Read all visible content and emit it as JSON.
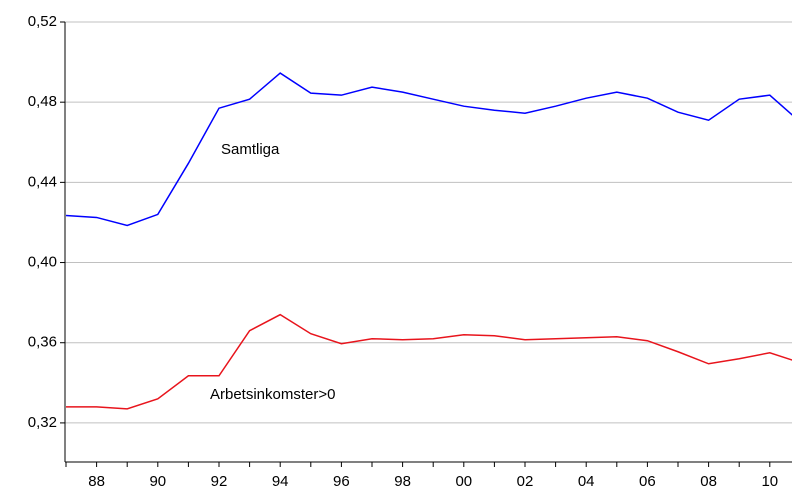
{
  "chart_data": {
    "type": "line",
    "categories": [
      null,
      "88",
      null,
      "90",
      null,
      "92",
      null,
      "94",
      null,
      "96",
      null,
      "98",
      null,
      "00",
      null,
      "02",
      null,
      "04",
      null,
      "06",
      null,
      "08",
      null,
      "10",
      null
    ],
    "series": [
      {
        "name": "Samtliga",
        "color": "#0000ff",
        "values": [
          0.4235,
          0.4225,
          0.4185,
          0.424,
          0.4495,
          0.477,
          0.4815,
          0.4945,
          0.4845,
          0.4835,
          0.4875,
          0.485,
          0.4815,
          0.478,
          0.476,
          0.4745,
          0.478,
          0.482,
          0.485,
          0.482,
          0.475,
          0.471,
          0.4815,
          0.4835,
          0.47
        ]
      },
      {
        "name": "Arbetsinkomster>0",
        "color": "#e8141c",
        "values": [
          0.328,
          0.328,
          0.327,
          0.332,
          0.3435,
          0.3435,
          0.366,
          0.374,
          0.3645,
          0.3595,
          0.362,
          0.3615,
          0.362,
          0.364,
          0.3635,
          0.3615,
          0.362,
          0.3625,
          0.363,
          0.361,
          0.3555,
          0.3495,
          0.352,
          0.355,
          0.35
        ]
      }
    ],
    "ylim": [
      0.3005,
      0.52
    ],
    "yticks": [
      {
        "value": 0.32,
        "label": "0,32"
      },
      {
        "value": 0.36,
        "label": "0,36"
      },
      {
        "value": 0.4,
        "label": "0,40"
      },
      {
        "value": 0.44,
        "label": "0,44"
      },
      {
        "value": 0.48,
        "label": "0,48"
      },
      {
        "value": 0.52,
        "label": "0,52"
      }
    ],
    "grid": true
  }
}
